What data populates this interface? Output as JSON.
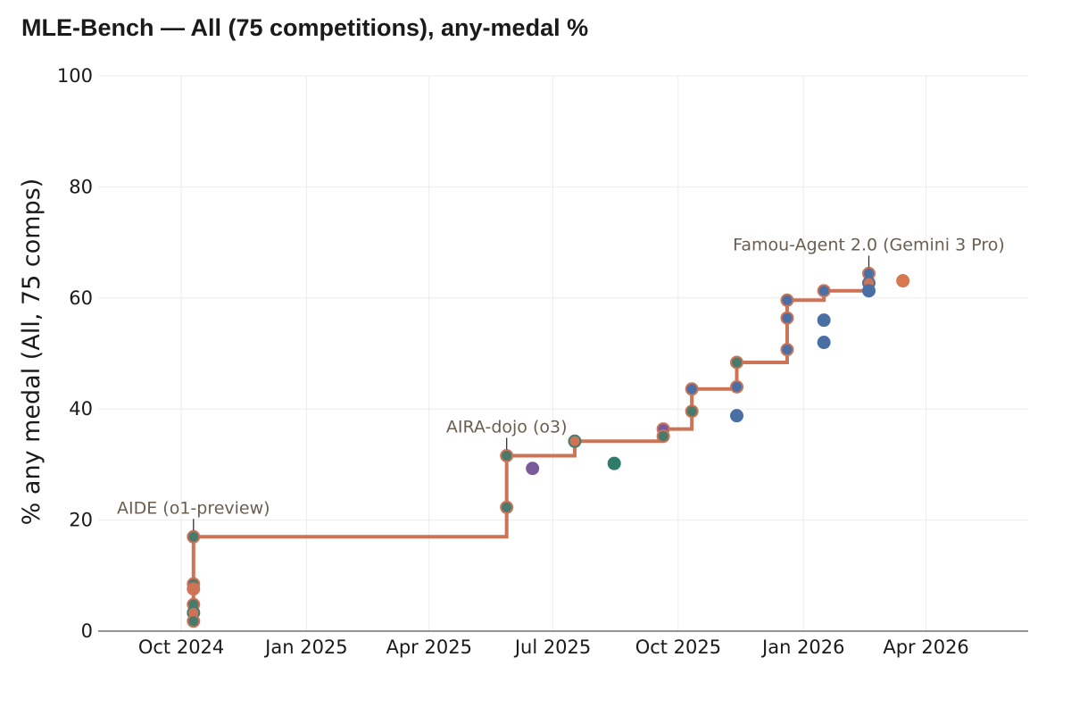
{
  "chart_data": {
    "type": "scatter",
    "title": "MLE-Bench — All (75 competitions), any-medal %",
    "xlabel": "",
    "ylabel": "% any medal (All, 75 comps)",
    "x_axis_type": "date",
    "xlim": [
      "2024-08-01",
      "2026-06-15"
    ],
    "ylim": [
      0,
      100
    ],
    "x_ticks": [
      {
        "date": "2024-10-01",
        "label": "Oct 2024"
      },
      {
        "date": "2025-01-01",
        "label": "Jan 2025"
      },
      {
        "date": "2025-04-01",
        "label": "Apr 2025"
      },
      {
        "date": "2025-07-01",
        "label": "Jul 2025"
      },
      {
        "date": "2025-10-01",
        "label": "Oct 2025"
      },
      {
        "date": "2026-01-01",
        "label": "Jan 2026"
      },
      {
        "date": "2026-04-01",
        "label": "Apr 2026"
      }
    ],
    "y_ticks": [
      0,
      20,
      40,
      60,
      80,
      100
    ],
    "grid": true,
    "legend": "none",
    "colors": {
      "frontier": "#cd7356",
      "point_edge": "#4a7a6c",
      "blue": "#4a6fa5",
      "teal": "#2e7a6c",
      "purple": "#7a5a9a",
      "orange": "#d9784f"
    },
    "frontier": [
      {
        "x": "2024-10-10",
        "y": 17.0
      },
      {
        "x": "2025-05-28",
        "y": 31.6
      },
      {
        "x": "2025-07-17",
        "y": 34.2
      },
      {
        "x": "2025-09-20",
        "y": 36.4
      },
      {
        "x": "2025-10-11",
        "y": 43.6
      },
      {
        "x": "2025-11-13",
        "y": 48.4
      },
      {
        "x": "2025-12-20",
        "y": 59.6
      },
      {
        "x": "2026-01-16",
        "y": 61.3
      },
      {
        "x": "2026-02-18",
        "y": 64.4
      }
    ],
    "points": [
      {
        "x": "2024-10-10",
        "y": 17.0,
        "fill": "#4a7a6c",
        "edge": "#cd7356"
      },
      {
        "x": "2024-10-10",
        "y": 8.5,
        "fill": "#4a7a6c",
        "edge": "#cd7356"
      },
      {
        "x": "2024-10-10",
        "y": 7.6,
        "fill": "#cd7356",
        "edge": "#cd7356"
      },
      {
        "x": "2024-10-10",
        "y": 4.8,
        "fill": "#4a7a6c",
        "edge": "#cd7356"
      },
      {
        "x": "2024-10-10",
        "y": 3.3,
        "fill": "#cd7356",
        "edge": "#4a7a6c"
      },
      {
        "x": "2024-10-10",
        "y": 1.8,
        "fill": "#4a7a6c",
        "edge": "#cd7356"
      },
      {
        "x": "2025-05-28",
        "y": 31.6,
        "fill": "#4a7a6c",
        "edge": "#cd7356"
      },
      {
        "x": "2025-05-28",
        "y": 22.3,
        "fill": "#4a7a6c",
        "edge": "#cd7356"
      },
      {
        "x": "2025-06-16",
        "y": 29.3,
        "fill": "#7a5a9a",
        "edge": "#7a5a9a"
      },
      {
        "x": "2025-07-17",
        "y": 34.2,
        "fill": "#cd7356",
        "edge": "#4a7a6c"
      },
      {
        "x": "2025-08-15",
        "y": 30.2,
        "fill": "#2e7a6c",
        "edge": "#2e7a6c"
      },
      {
        "x": "2025-09-20",
        "y": 36.4,
        "fill": "#7a5a9a",
        "edge": "#cd7356"
      },
      {
        "x": "2025-09-20",
        "y": 35.1,
        "fill": "#4a7a6c",
        "edge": "#cd7356"
      },
      {
        "x": "2025-10-11",
        "y": 43.6,
        "fill": "#4a6fa5",
        "edge": "#cd7356"
      },
      {
        "x": "2025-10-11",
        "y": 39.6,
        "fill": "#4a7a6c",
        "edge": "#cd7356"
      },
      {
        "x": "2025-11-13",
        "y": 48.4,
        "fill": "#4a7a6c",
        "edge": "#cd7356"
      },
      {
        "x": "2025-11-13",
        "y": 44.0,
        "fill": "#4a6fa5",
        "edge": "#cd7356"
      },
      {
        "x": "2025-11-13",
        "y": 38.8,
        "fill": "#4a6fa5",
        "edge": "#4a6fa5"
      },
      {
        "x": "2025-12-20",
        "y": 59.6,
        "fill": "#4a6fa5",
        "edge": "#cd7356"
      },
      {
        "x": "2025-12-20",
        "y": 56.4,
        "fill": "#4a6fa5",
        "edge": "#cd7356"
      },
      {
        "x": "2025-12-20",
        "y": 50.7,
        "fill": "#4a6fa5",
        "edge": "#cd7356"
      },
      {
        "x": "2026-01-16",
        "y": 61.3,
        "fill": "#4a6fa5",
        "edge": "#cd7356"
      },
      {
        "x": "2026-01-16",
        "y": 56.0,
        "fill": "#4a6fa5",
        "edge": "#4a6fa5"
      },
      {
        "x": "2026-01-16",
        "y": 52.0,
        "fill": "#4a6fa5",
        "edge": "#4a6fa5"
      },
      {
        "x": "2026-02-18",
        "y": 64.4,
        "fill": "#4a6fa5",
        "edge": "#cd7356"
      },
      {
        "x": "2026-02-18",
        "y": 62.7,
        "fill": "#cd7356",
        "edge": "#4a6fa5"
      },
      {
        "x": "2026-02-18",
        "y": 61.3,
        "fill": "#4a6fa5",
        "edge": "#4a6fa5"
      },
      {
        "x": "2026-03-15",
        "y": 63.1,
        "fill": "#d9784f",
        "edge": "#d9784f"
      }
    ],
    "annotations": [
      {
        "x": "2024-10-10",
        "y": 17.0,
        "text": "AIDE (o1-preview)"
      },
      {
        "x": "2025-05-28",
        "y": 31.6,
        "text": "AIRA-dojo (o3)"
      },
      {
        "x": "2026-02-18",
        "y": 64.4,
        "text": "Famou-Agent 2.0 (Gemini 3 Pro)"
      }
    ]
  }
}
